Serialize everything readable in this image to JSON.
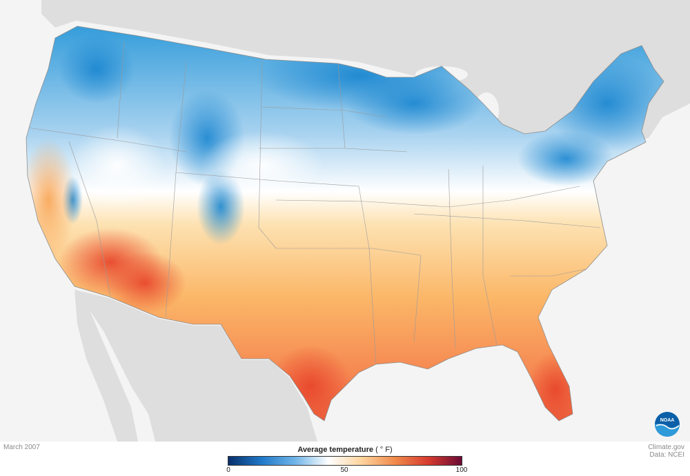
{
  "map": {
    "date_label": "March 2007",
    "credit_site": "Climate.gov",
    "credit_data": "Data: NCEI",
    "logo_text": "NOAA"
  },
  "legend": {
    "title": "Average temperature",
    "unit": "( ° F)",
    "ticks": [
      "0",
      "50",
      "100"
    ],
    "scale_min": 0,
    "scale_max": 100,
    "colors": [
      "#08306b",
      "#1f78c8",
      "#6fb4e8",
      "#ffffff",
      "#fdd49e",
      "#f08a4b",
      "#d63b2f",
      "#6b0a35"
    ]
  },
  "colors": {
    "cold": "#1f8fd6",
    "neutral": "#ffffff",
    "warm": "#fdc575",
    "hot": "#ef5a3a",
    "land_outside": "#dcdcdc",
    "water": "#f4f4f4"
  }
}
